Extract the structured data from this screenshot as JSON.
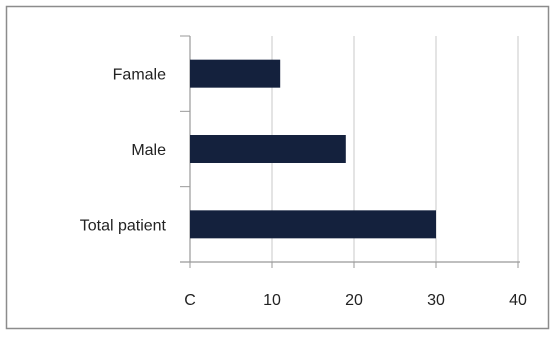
{
  "chart_data": {
    "type": "bar",
    "orientation": "horizontal",
    "categories": [
      "Famale",
      "Male",
      "Total patient"
    ],
    "values": [
      11,
      19,
      30
    ],
    "xticks": [
      "C",
      "10",
      "20",
      "30",
      "40"
    ],
    "xlim": [
      0,
      40
    ],
    "grid": true,
    "legend": "none",
    "bar_color": "#14213d",
    "gridline_color": "#c8c8c8",
    "frame_color": "#8c8c8c"
  }
}
